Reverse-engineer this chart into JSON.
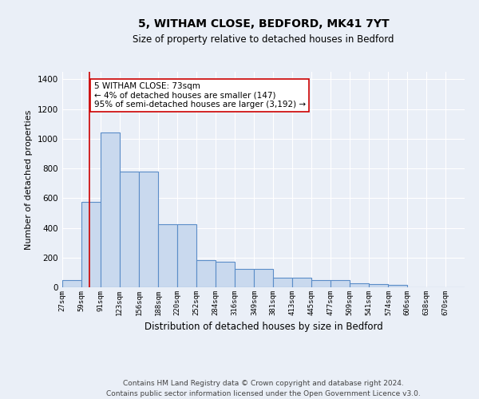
{
  "title1": "5, WITHAM CLOSE, BEDFORD, MK41 7YT",
  "title2": "Size of property relative to detached houses in Bedford",
  "xlabel": "Distribution of detached houses by size in Bedford",
  "ylabel": "Number of detached properties",
  "bar_labels": [
    "27sqm",
    "59sqm",
    "91sqm",
    "123sqm",
    "156sqm",
    "188sqm",
    "220sqm",
    "252sqm",
    "284sqm",
    "316sqm",
    "349sqm",
    "381sqm",
    "413sqm",
    "445sqm",
    "477sqm",
    "509sqm",
    "541sqm",
    "574sqm",
    "606sqm",
    "638sqm",
    "670sqm"
  ],
  "bar_edges": [
    27,
    59,
    91,
    123,
    156,
    188,
    220,
    252,
    284,
    316,
    349,
    381,
    413,
    445,
    477,
    509,
    541,
    574,
    606,
    638,
    670
  ],
  "bar_heights": [
    48,
    572,
    1042,
    780,
    780,
    425,
    425,
    182,
    170,
    125,
    125,
    65,
    65,
    48,
    48,
    25,
    22,
    18,
    0,
    0,
    0
  ],
  "bar_color": "#c9d9ee",
  "bar_edge_color": "#5b8dc8",
  "bar_edge_width": 0.8,
  "red_line_x": 73,
  "red_line_color": "#cc0000",
  "annotation_text": "5 WITHAM CLOSE: 73sqm\n← 4% of detached houses are smaller (147)\n95% of semi-detached houses are larger (3,192) →",
  "annotation_box_color": "#ffffff",
  "annotation_box_edge_color": "#cc0000",
  "annotation_fontsize": 7.5,
  "ylim": [
    0,
    1450
  ],
  "background_color": "#eaeff7",
  "plot_bg_color": "#eaeff7",
  "grid_color": "#ffffff",
  "footer1": "Contains HM Land Registry data © Crown copyright and database right 2024.",
  "footer2": "Contains public sector information licensed under the Open Government Licence v3.0.",
  "title1_fontsize": 10,
  "title2_fontsize": 8.5,
  "xlabel_fontsize": 8.5,
  "ylabel_fontsize": 8,
  "tick_fontsize": 6.5,
  "footer_fontsize": 6.5
}
